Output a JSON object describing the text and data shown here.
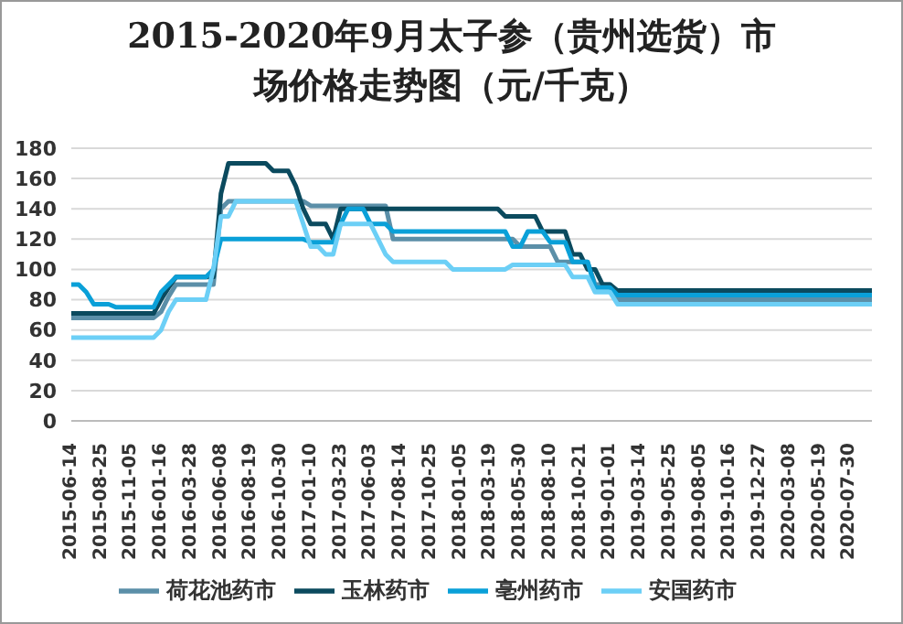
{
  "chart_data": {
    "type": "line",
    "title": "2015-2020年9月太子参（贵州选货）市场价格走势图（元/千克）",
    "categories": [
      "2015-06-14",
      null,
      null,
      null,
      "2015-08-25",
      null,
      null,
      null,
      "2015-11-05",
      null,
      null,
      null,
      "2016-01-16",
      null,
      null,
      null,
      "2016-03-28",
      null,
      null,
      null,
      "2016-06-08",
      null,
      null,
      null,
      "2016-08-19",
      null,
      null,
      null,
      "2016-10-30",
      null,
      null,
      null,
      "2017-01-10",
      null,
      null,
      null,
      "2017-03-23",
      null,
      null,
      null,
      "2017-06-03",
      null,
      null,
      null,
      "2017-08-14",
      null,
      null,
      null,
      "2017-10-25",
      null,
      null,
      null,
      "2018-01-05",
      null,
      null,
      null,
      "2018-03-19",
      null,
      null,
      null,
      "2018-05-30",
      null,
      null,
      null,
      "2018-08-10",
      null,
      null,
      null,
      "2018-10-21",
      null,
      null,
      null,
      "2019-01-01",
      null,
      null,
      null,
      "2019-03-14",
      null,
      null,
      null,
      "2019-05-25",
      null,
      null,
      null,
      "2019-08-05",
      null,
      null,
      null,
      "2019-10-16",
      null,
      null,
      null,
      "2019-12-27",
      null,
      null,
      null,
      "2020-03-08",
      null,
      null,
      null,
      "2020-05-19",
      null,
      null,
      null,
      "2020-07-30",
      null,
      null,
      null
    ],
    "series": [
      {
        "name": "荷花池药市",
        "color": "#5b8fa8",
        "values": [
          68,
          68,
          68,
          68,
          68,
          68,
          68,
          68,
          68,
          68,
          68,
          68,
          72,
          82,
          90,
          90,
          90,
          90,
          90,
          90,
          140,
          145,
          145,
          145,
          145,
          145,
          145,
          145,
          145,
          145,
          145,
          145,
          142,
          142,
          142,
          142,
          142,
          142,
          142,
          142,
          142,
          142,
          142,
          120,
          120,
          120,
          120,
          120,
          120,
          120,
          120,
          120,
          120,
          120,
          120,
          120,
          120,
          120,
          120,
          120,
          115,
          115,
          115,
          115,
          115,
          105,
          105,
          105,
          105,
          105,
          90,
          90,
          90,
          80,
          80,
          80,
          80,
          80,
          80,
          80,
          80,
          80,
          80,
          80,
          80,
          80,
          80,
          80,
          80,
          80,
          80,
          80,
          80,
          80,
          80,
          80,
          80,
          80,
          80,
          80,
          80,
          80,
          80,
          80,
          80,
          80,
          80,
          80
        ]
      },
      {
        "name": "玉林药市",
        "color": "#0b4a5e",
        "values": [
          71,
          71,
          71,
          71,
          71,
          71,
          71,
          71,
          71,
          71,
          71,
          71,
          80,
          88,
          95,
          95,
          95,
          95,
          95,
          95,
          150,
          170,
          170,
          170,
          170,
          170,
          170,
          165,
          165,
          165,
          155,
          140,
          130,
          130,
          130,
          120,
          140,
          140,
          140,
          140,
          140,
          140,
          140,
          140,
          140,
          140,
          140,
          140,
          140,
          140,
          140,
          140,
          140,
          140,
          140,
          140,
          140,
          140,
          135,
          135,
          135,
          135,
          135,
          125,
          125,
          125,
          125,
          110,
          110,
          100,
          100,
          90,
          90,
          86,
          86,
          86,
          86,
          86,
          86,
          86,
          86,
          86,
          86,
          86,
          86,
          86,
          86,
          86,
          86,
          86,
          86,
          86,
          86,
          86,
          86,
          86,
          86,
          86,
          86,
          86,
          86,
          86,
          86,
          86,
          86,
          86,
          86,
          86
        ]
      },
      {
        "name": "亳州药市",
        "color": "#0aa0d8",
        "values": [
          90,
          90,
          85,
          77,
          77,
          77,
          75,
          75,
          75,
          75,
          75,
          75,
          85,
          90,
          95,
          95,
          95,
          95,
          95,
          100,
          120,
          120,
          120,
          120,
          120,
          120,
          120,
          120,
          120,
          120,
          120,
          120,
          118,
          118,
          118,
          118,
          130,
          140,
          140,
          140,
          130,
          130,
          130,
          125,
          125,
          125,
          125,
          125,
          125,
          125,
          125,
          125,
          125,
          125,
          125,
          125,
          125,
          125,
          125,
          115,
          115,
          125,
          125,
          125,
          118,
          118,
          118,
          105,
          105,
          105,
          88,
          88,
          88,
          83,
          83,
          83,
          83,
          83,
          83,
          83,
          83,
          83,
          83,
          83,
          83,
          83,
          83,
          83,
          83,
          83,
          83,
          83,
          83,
          83,
          83,
          83,
          83,
          83,
          83,
          83,
          83,
          83,
          83,
          83,
          83,
          83,
          83,
          83
        ]
      },
      {
        "name": "安国药市",
        "color": "#6ccff6",
        "values": [
          55,
          55,
          55,
          55,
          55,
          55,
          55,
          55,
          55,
          55,
          55,
          55,
          60,
          72,
          80,
          80,
          80,
          80,
          80,
          100,
          135,
          135,
          145,
          145,
          145,
          145,
          145,
          145,
          145,
          145,
          145,
          130,
          115,
          115,
          110,
          110,
          130,
          130,
          130,
          130,
          130,
          120,
          110,
          105,
          105,
          105,
          105,
          105,
          105,
          105,
          105,
          100,
          100,
          100,
          100,
          100,
          100,
          100,
          100,
          103,
          103,
          103,
          103,
          103,
          103,
          103,
          103,
          95,
          95,
          95,
          85,
          85,
          85,
          77,
          77,
          77,
          77,
          77,
          77,
          77,
          77,
          77,
          77,
          77,
          77,
          77,
          77,
          77,
          77,
          77,
          77,
          77,
          77,
          77,
          77,
          77,
          77,
          77,
          77,
          77,
          77,
          77,
          77,
          77,
          77,
          77,
          77,
          77
        ]
      }
    ],
    "ylim": [
      0,
      180
    ],
    "yticks": [
      0,
      20,
      40,
      60,
      80,
      100,
      120,
      140,
      160,
      180
    ],
    "grid": "y",
    "legend": "bottom",
    "marker": "none",
    "line_style": "solid"
  }
}
